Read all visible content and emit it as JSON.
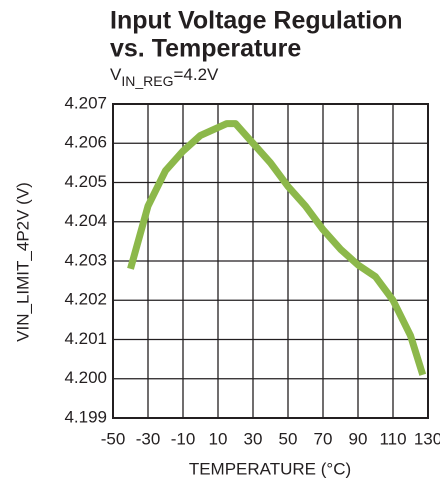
{
  "chart_data": {
    "type": "line",
    "title": [
      "Input Voltage Regulation",
      "vs. Temperature"
    ],
    "subtitle": [
      "V",
      "IN_REG",
      "=4.2V"
    ],
    "x_label": "TEMPERATURE (°C)",
    "y_label": "VIN_LIMIT_4P2V (V)",
    "x": [
      -40,
      -30,
      -20,
      -10,
      0,
      10,
      15,
      20,
      30,
      40,
      50,
      60,
      70,
      80,
      90,
      100,
      110,
      120,
      127
    ],
    "series": [
      {
        "name": "VIN_LIMIT_4P2V",
        "color": "#8cb84a",
        "values": [
          4.2028,
          4.2044,
          4.2053,
          4.2058,
          4.2062,
          4.2064,
          4.2065,
          4.2065,
          4.206,
          4.2055,
          4.2049,
          4.2044,
          4.2038,
          4.2033,
          4.2029,
          4.2026,
          4.202,
          4.2011,
          4.2001
        ]
      }
    ],
    "xlim": [
      -50,
      130
    ],
    "xticks": [
      -50,
      -30,
      -10,
      10,
      30,
      50,
      70,
      90,
      110,
      130
    ],
    "ylim": [
      4.199,
      4.207
    ],
    "yticks": [
      4.199,
      {
        "value": 4.2,
        "label": "4.200"
      },
      4.201,
      4.202,
      4.203,
      4.204,
      4.205,
      4.206,
      4.207
    ],
    "grid": true
  }
}
